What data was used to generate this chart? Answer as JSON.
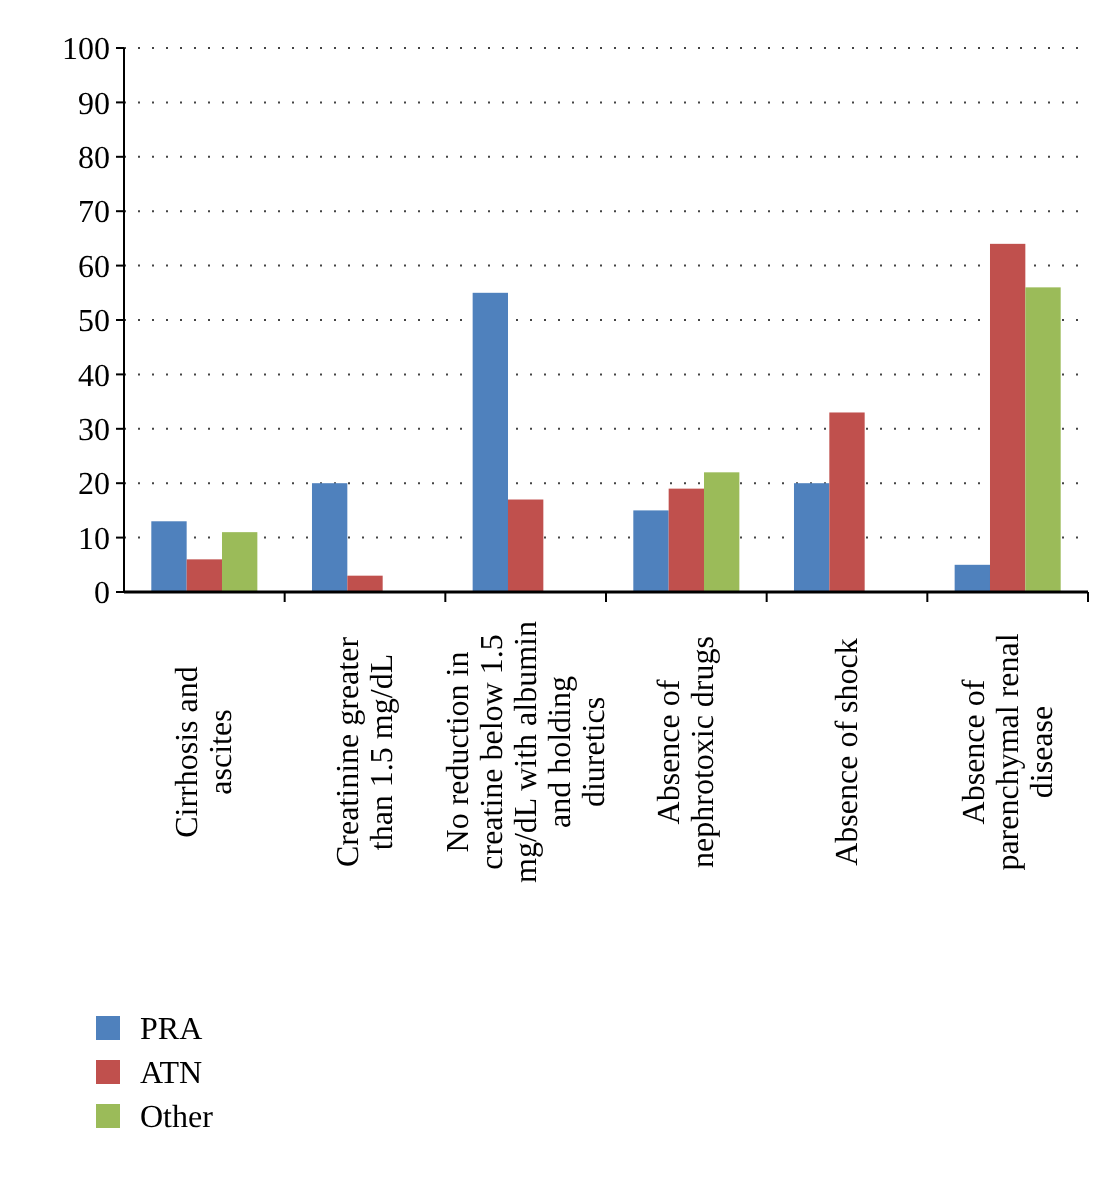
{
  "chart_data": {
    "type": "bar",
    "categories": [
      "Cirrhosis and ascites",
      "Creatinine greater than 1.5 mg/dL",
      "No reduction in creatine below 1.5 mg/dL with albumin and holding diuretics",
      "Absence of nephrotoxic drugs",
      "Absence of shock",
      "Absence of parenchymal renal disease"
    ],
    "series": [
      {
        "name": "PRA",
        "color": "#4f81bd",
        "values": [
          13,
          20,
          55,
          15,
          20,
          5
        ]
      },
      {
        "name": "ATN",
        "color": "#c0504d",
        "values": [
          6,
          3,
          17,
          19,
          33,
          64
        ]
      },
      {
        "name": "Other",
        "color": "#9bbb59",
        "values": [
          11,
          null,
          null,
          22,
          null,
          56
        ]
      }
    ],
    "ylim": [
      0,
      100
    ],
    "yticks": [
      0,
      10,
      20,
      30,
      40,
      50,
      60,
      70,
      80,
      90,
      100
    ],
    "grid": "y",
    "legend": "bottom"
  }
}
